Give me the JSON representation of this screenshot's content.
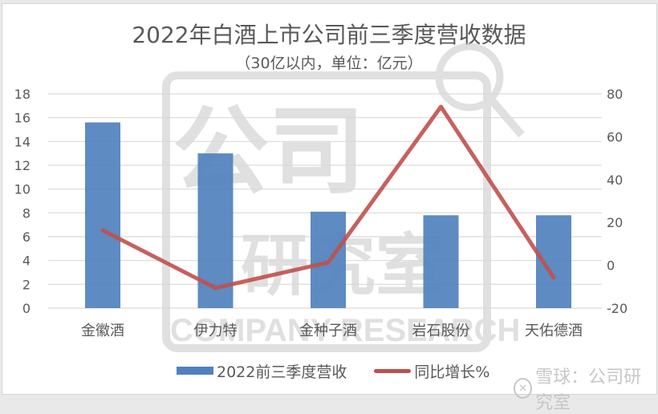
{
  "title": "2022年白酒上市公司前三季度营收数据",
  "subtitle": "（30亿以内，单位：亿元）",
  "watermark": {
    "text_cn": "公司研究室",
    "text_en": "COMPANY RESEARCH"
  },
  "brand": {
    "logo_icon": "snowball-logo-icon",
    "label": "雪球：公司研究室"
  },
  "legend": {
    "bar_label": "2022前三季度营收",
    "line_label": "同比增长%"
  },
  "colors": {
    "bar": "#4f81bd",
    "line": "#c0504d",
    "grid": "#d9d9d9",
    "text": "#595959"
  },
  "chart_data": {
    "type": "bar+line",
    "title": "2022年白酒上市公司前三季度营收数据",
    "subtitle": "（30亿以内，单位：亿元）",
    "categories": [
      "金徽酒",
      "伊力特",
      "金种子酒",
      "岩石股份",
      "天佑德酒"
    ],
    "series": [
      {
        "name": "2022前三季度营收",
        "type": "bar",
        "axis": "left",
        "values": [
          15.6,
          13.0,
          8.1,
          7.8,
          7.8
        ]
      },
      {
        "name": "同比增长%",
        "type": "line",
        "axis": "right",
        "values": [
          16.3,
          -10.6,
          1.3,
          74.0,
          -5.8
        ]
      }
    ],
    "left_axis": {
      "ylim": [
        0,
        18
      ],
      "ticks": [
        0,
        2,
        4,
        6,
        8,
        10,
        12,
        14,
        16,
        18
      ]
    },
    "right_axis": {
      "ylim": [
        -20,
        80
      ],
      "ticks": [
        -20,
        0,
        20,
        40,
        60,
        80
      ]
    },
    "xlabel": "",
    "ylabel": "",
    "grid": true,
    "legend_position": "bottom"
  }
}
